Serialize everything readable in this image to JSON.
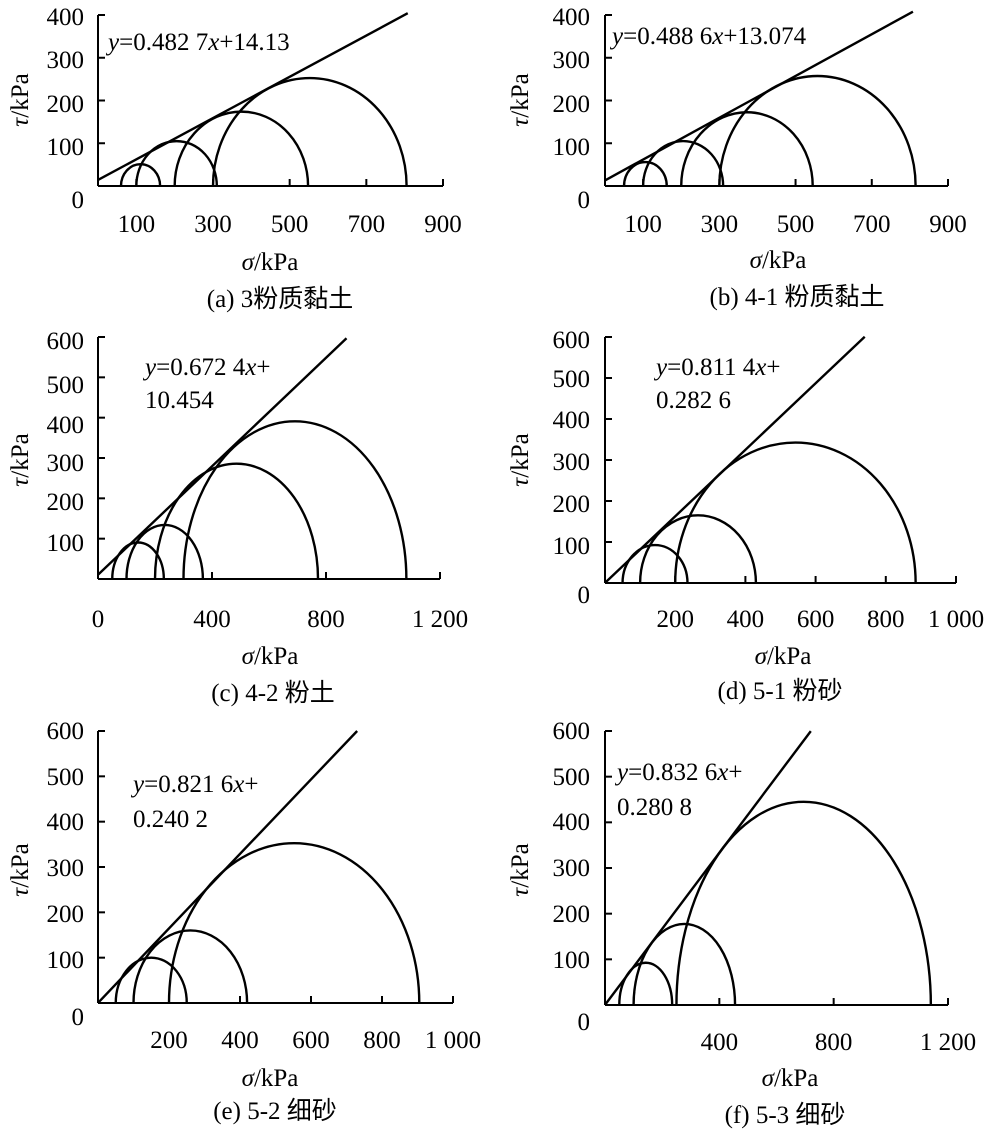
{
  "chart_data": [
    {
      "type": "line",
      "caption": "(a) 3粉质黏土",
      "xlabel_symbol": "σ",
      "xlabel_unit": "/kPa",
      "ylabel_symbol": "τ",
      "ylabel_unit": "/kPa",
      "xlim": [
        0,
        900
      ],
      "ylim": [
        0,
        400
      ],
      "x_ticks": [
        "100",
        "300",
        "500",
        "700",
        "900"
      ],
      "y_ticks": [
        "0",
        "100",
        "200",
        "300",
        "400"
      ],
      "equation": {
        "lines": [
          [
            "y",
            "=0.482 7",
            "x",
            "+14.13"
          ]
        ]
      },
      "envelope": {
        "slope": 0.4827,
        "intercept": 14.13,
        "x_end": 808
      },
      "mohr_circles": [
        {
          "sigma3": 60,
          "sigma1": 162
        },
        {
          "sigma3": 100,
          "sigma1": 310
        },
        {
          "sigma3": 200,
          "sigma1": 548
        },
        {
          "sigma3": 300,
          "sigma1": 805
        }
      ]
    },
    {
      "type": "line",
      "caption": "(b) 4-1 粉质黏土",
      "xlabel_symbol": "σ",
      "xlabel_unit": "/kPa",
      "ylabel_symbol": "τ",
      "ylabel_unit": "/kPa",
      "xlim": [
        0,
        900
      ],
      "ylim": [
        0,
        400
      ],
      "x_ticks": [
        "100",
        "300",
        "500",
        "700",
        "900"
      ],
      "y_ticks": [
        "0",
        "100",
        "200",
        "300",
        "400"
      ],
      "equation": {
        "lines": [
          [
            "y",
            "=0.488 6",
            "x",
            "+13.074"
          ]
        ]
      },
      "envelope": {
        "slope": 0.4886,
        "intercept": 13.074,
        "x_end": 808
      },
      "mohr_circles": [
        {
          "sigma3": 50,
          "sigma1": 162
        },
        {
          "sigma3": 100,
          "sigma1": 310
        },
        {
          "sigma3": 200,
          "sigma1": 545
        },
        {
          "sigma3": 300,
          "sigma1": 815
        }
      ]
    },
    {
      "type": "line",
      "caption": "(c) 4-2 粉土",
      "xlabel_symbol": "σ",
      "xlabel_unit": "/kPa",
      "ylabel_symbol": "τ",
      "ylabel_unit": "/kPa",
      "xlim": [
        0,
        1200
      ],
      "ylim": [
        0,
        600
      ],
      "x_ticks": [
        "0",
        "400",
        "800",
        "1 200"
      ],
      "y_ticks": [
        "100",
        "200",
        "300",
        "400",
        "500",
        "600"
      ],
      "equation": {
        "lines": [
          [
            "y",
            "=0.672 4",
            "x",
            "+"
          ],
          [
            "10.454"
          ]
        ]
      },
      "envelope": {
        "slope": 0.6724,
        "intercept": 10.454,
        "x_end": 872
      },
      "mohr_circles": [
        {
          "sigma3": 50,
          "sigma1": 231
        },
        {
          "sigma3": 100,
          "sigma1": 368
        },
        {
          "sigma3": 200,
          "sigma1": 772
        },
        {
          "sigma3": 300,
          "sigma1": 1082
        }
      ]
    },
    {
      "type": "line",
      "caption": "(d) 5-1 粉砂",
      "xlabel_symbol": "σ",
      "xlabel_unit": "/kPa",
      "ylabel_symbol": "τ",
      "ylabel_unit": "/kPa",
      "xlim": [
        0,
        1000
      ],
      "ylim": [
        0,
        600
      ],
      "x_ticks": [
        "200",
        "400",
        "600",
        "800",
        "1 000"
      ],
      "y_ticks": [
        "0",
        "100",
        "200",
        "300",
        "400",
        "500",
        "600"
      ],
      "equation": {
        "lines": [
          [
            "y",
            "=0.811 4",
            "x",
            "+"
          ],
          [
            "0.282 6"
          ]
        ]
      },
      "envelope": {
        "slope": 0.8114,
        "intercept": 0.2826,
        "x_end": 740
      },
      "mohr_circles": [
        {
          "sigma3": 50,
          "sigma1": 235
        },
        {
          "sigma3": 100,
          "sigma1": 430
        },
        {
          "sigma3": 200,
          "sigma1": 885
        }
      ]
    },
    {
      "type": "line",
      "caption": "(e) 5-2 细砂",
      "xlabel_symbol": "σ",
      "xlabel_unit": "/kPa",
      "ylabel_symbol": "τ",
      "ylabel_unit": "/kPa",
      "xlim": [
        0,
        1000
      ],
      "ylim": [
        0,
        600
      ],
      "x_ticks": [
        "200",
        "400",
        "600",
        "800",
        "1 000"
      ],
      "y_ticks": [
        "0",
        "100",
        "200",
        "300",
        "400",
        "500",
        "600"
      ],
      "equation": {
        "lines": [
          [
            "y",
            "=0.821 6",
            "x",
            "+"
          ],
          [
            "0.240 2"
          ]
        ]
      },
      "envelope": {
        "slope": 0.8216,
        "intercept": 0.2402,
        "x_end": 730
      },
      "mohr_circles": [
        {
          "sigma3": 50,
          "sigma1": 250
        },
        {
          "sigma3": 100,
          "sigma1": 420
        },
        {
          "sigma3": 200,
          "sigma1": 905
        }
      ]
    },
    {
      "type": "line",
      "caption": "(f) 5-3 细砂",
      "xlabel_symbol": "σ",
      "xlabel_unit": "/kPa",
      "ylabel_symbol": "τ",
      "ylabel_unit": "/kPa",
      "xlim": [
        0,
        1200
      ],
      "ylim": [
        0,
        600
      ],
      "x_ticks": [
        "400",
        "800",
        "1 200"
      ],
      "y_ticks": [
        "0",
        "100",
        "200",
        "300",
        "400",
        "500",
        "600"
      ],
      "equation": {
        "lines": [
          [
            "y",
            "=0.832 6",
            "x",
            "+"
          ],
          [
            "0.280 8"
          ]
        ]
      },
      "envelope": {
        "slope": 0.8326,
        "intercept": 0.2808,
        "x_end": 720
      },
      "mohr_circles": [
        {
          "sigma3": 50,
          "sigma1": 235
        },
        {
          "sigma3": 100,
          "sigma1": 455
        },
        {
          "sigma3": 250,
          "sigma1": 1140
        }
      ]
    }
  ]
}
